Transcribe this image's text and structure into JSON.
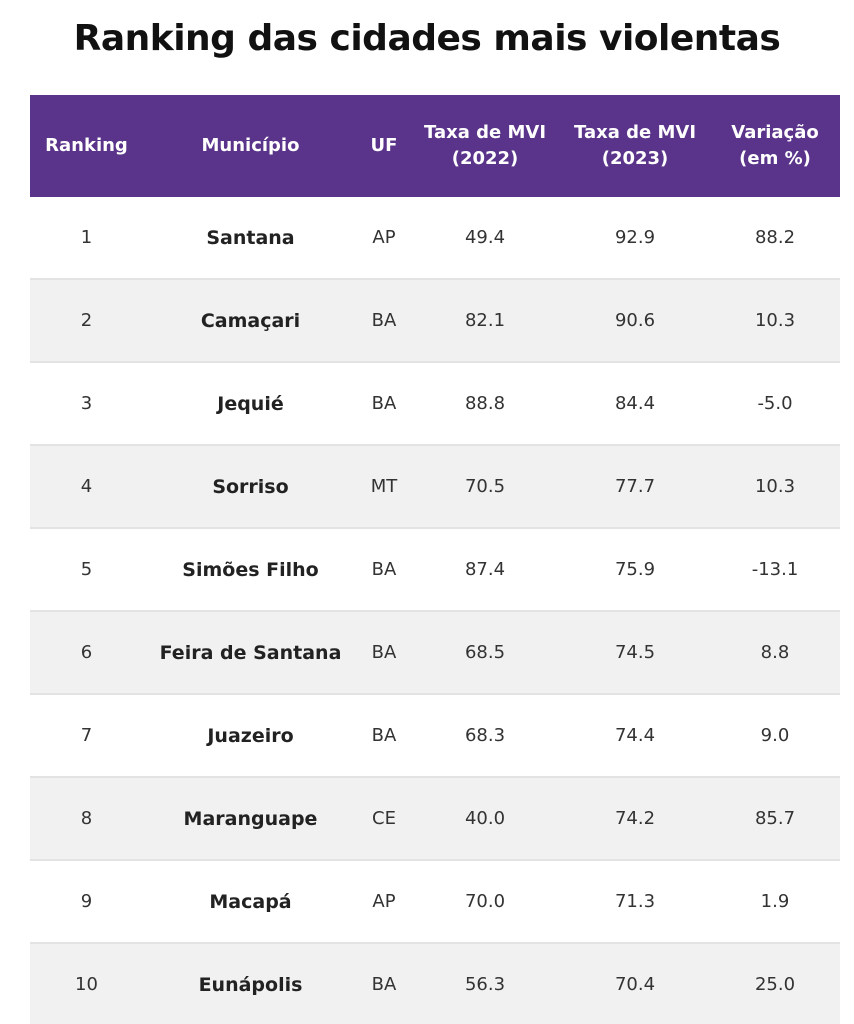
{
  "chart_data": {
    "type": "table",
    "title": "Ranking das cidades mais violentas",
    "columns": [
      {
        "lines": [
          "Ranking"
        ]
      },
      {
        "lines": [
          "Município"
        ]
      },
      {
        "lines": [
          "UF"
        ]
      },
      {
        "lines": [
          "Taxa de MVI",
          "(2022)"
        ]
      },
      {
        "lines": [
          "Taxa de MVI",
          "(2023)"
        ]
      },
      {
        "lines": [
          "Variação",
          "(em %)"
        ]
      }
    ],
    "rows": [
      {
        "rank": "1",
        "city": "Santana",
        "uf": "AP",
        "mvi_2022": "49.4",
        "mvi_2023": "92.9",
        "variation": "88.2"
      },
      {
        "rank": "2",
        "city": "Camaçari",
        "uf": "BA",
        "mvi_2022": "82.1",
        "mvi_2023": "90.6",
        "variation": "10.3"
      },
      {
        "rank": "3",
        "city": "Jequié",
        "uf": "BA",
        "mvi_2022": "88.8",
        "mvi_2023": "84.4",
        "variation": "-5.0"
      },
      {
        "rank": "4",
        "city": "Sorriso",
        "uf": "MT",
        "mvi_2022": "70.5",
        "mvi_2023": "77.7",
        "variation": "10.3"
      },
      {
        "rank": "5",
        "city": "Simões Filho",
        "uf": "BA",
        "mvi_2022": "87.4",
        "mvi_2023": "75.9",
        "variation": "-13.1"
      },
      {
        "rank": "6",
        "city": "Feira de Santana",
        "uf": "BA",
        "mvi_2022": "68.5",
        "mvi_2023": "74.5",
        "variation": "8.8"
      },
      {
        "rank": "7",
        "city": "Juazeiro",
        "uf": "BA",
        "mvi_2022": "68.3",
        "mvi_2023": "74.4",
        "variation": "9.0"
      },
      {
        "rank": "8",
        "city": "Maranguape",
        "uf": "CE",
        "mvi_2022": "40.0",
        "mvi_2023": "74.2",
        "variation": "85.7"
      },
      {
        "rank": "9",
        "city": "Macapá",
        "uf": "AP",
        "mvi_2022": "70.0",
        "mvi_2023": "71.3",
        "variation": "1.9"
      },
      {
        "rank": "10",
        "city": "Eunápolis",
        "uf": "BA",
        "mvi_2022": "56.3",
        "mvi_2023": "70.4",
        "variation": "25.0"
      }
    ]
  },
  "colors": {
    "header_bg": "#5a338a",
    "header_text": "#ffffff",
    "row_alt_bg": "#f1f1f1",
    "row_bg": "#ffffff",
    "divider": "#e3e3e3"
  }
}
